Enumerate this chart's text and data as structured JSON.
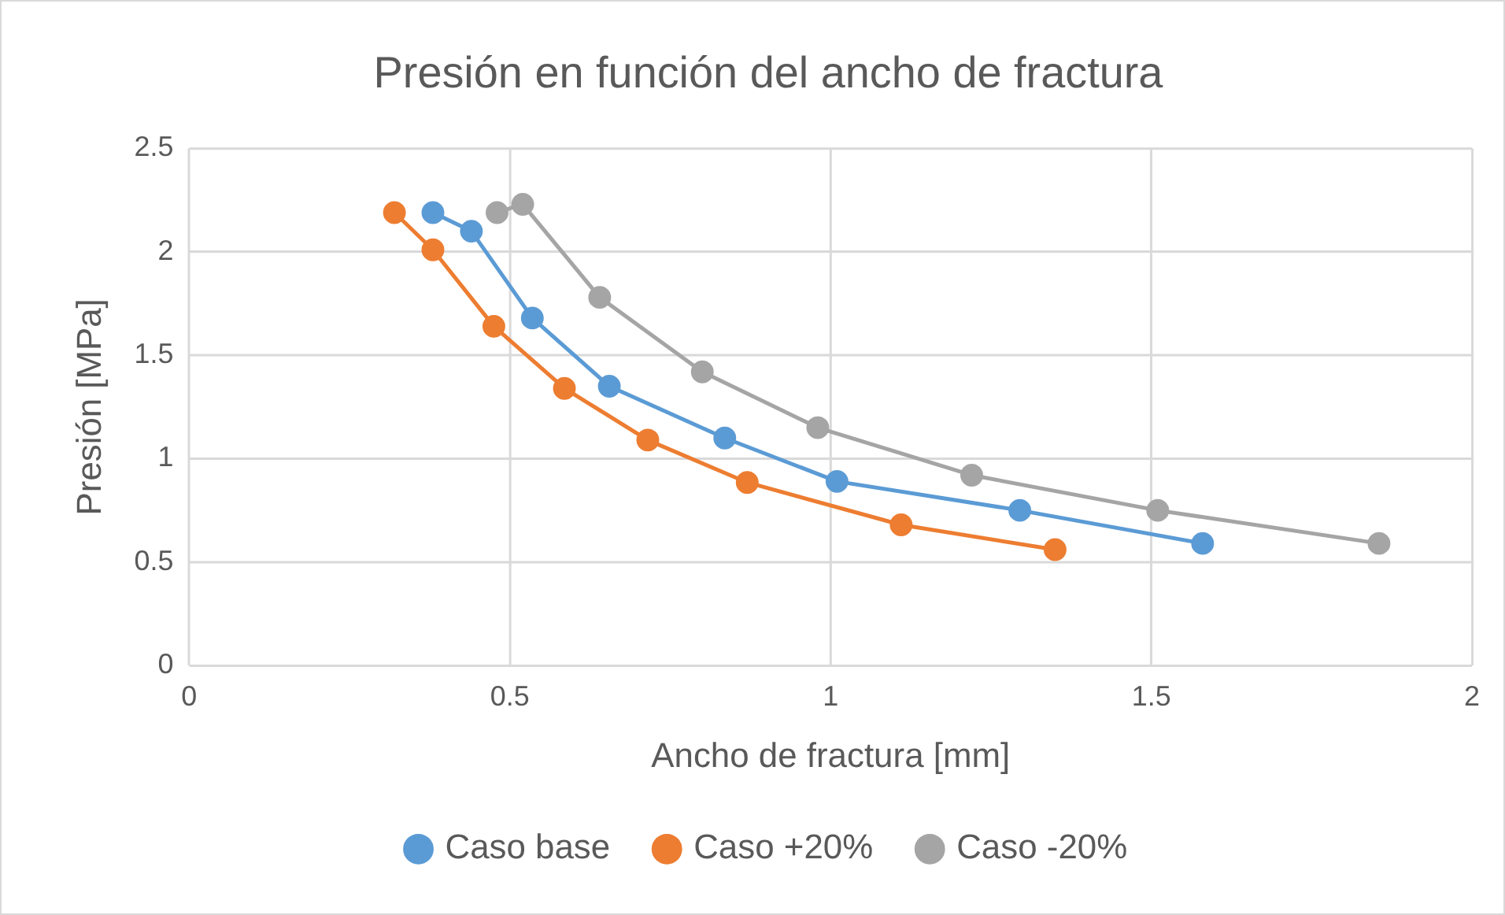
{
  "chart_data": {
    "type": "line",
    "title": "Presión en función del ancho de fractura",
    "xlabel": "Ancho de fractura [mm]",
    "ylabel": "Presión [MPa]",
    "series": [
      {
        "name": "Caso base",
        "color": "#5b9bd5",
        "x": [
          0.38,
          0.44,
          0.535,
          0.655,
          0.835,
          1.01,
          1.295,
          1.58
        ],
        "values": [
          2.19,
          2.1,
          1.68,
          1.35,
          1.1,
          0.89,
          0.75,
          0.59
        ]
      },
      {
        "name": "Caso +20%",
        "color": "#ed7d31",
        "x": [
          0.32,
          0.38,
          0.475,
          0.585,
          0.715,
          0.87,
          1.11,
          1.35
        ],
        "values": [
          2.19,
          2.01,
          1.64,
          1.34,
          1.09,
          0.885,
          0.68,
          0.56
        ]
      },
      {
        "name": "Caso -20%",
        "color": "#a5a5a5",
        "x": [
          0.48,
          0.52,
          0.64,
          0.8,
          0.98,
          1.22,
          1.51,
          1.855
        ],
        "values": [
          2.19,
          2.23,
          1.78,
          1.42,
          1.15,
          0.92,
          0.75,
          0.59
        ]
      }
    ],
    "xlim": [
      0,
      2
    ],
    "xticks": [
      0,
      0.5,
      1,
      1.5,
      2
    ],
    "ylim": [
      0,
      2.5
    ],
    "yticks": [
      0,
      0.5,
      1,
      1.5,
      2,
      2.5
    ],
    "grid": true,
    "legend": "bottom",
    "marker": "circle",
    "line_style": "solid"
  }
}
